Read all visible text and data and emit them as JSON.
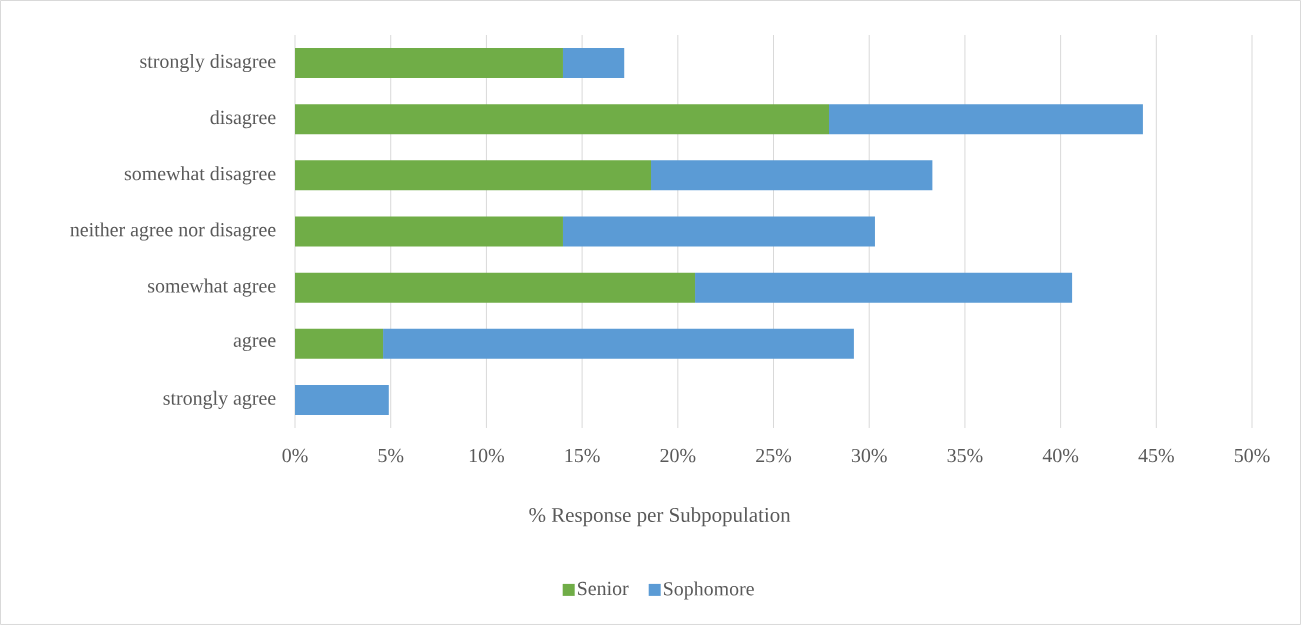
{
  "chart_data": {
    "type": "bar",
    "orientation": "horizontal",
    "stacked": true,
    "categories": [
      "strongly disagree",
      "disagree",
      "somewhat disagree",
      "neither agree nor disagree",
      "somewhat agree",
      "agree",
      "strongly agree"
    ],
    "series": [
      {
        "name": "Senior",
        "color": "#70ad47",
        "values": [
          14.0,
          27.9,
          18.6,
          14.0,
          20.9,
          4.6,
          0
        ]
      },
      {
        "name": "Sophomore",
        "color": "#5b9bd5",
        "values": [
          3.2,
          16.4,
          14.7,
          16.3,
          19.7,
          24.6,
          4.9
        ]
      }
    ],
    "xlabel": "% Response per Subpopulation",
    "xlim": [
      0,
      50
    ],
    "xticks": [
      {
        "value": 0,
        "label": "0%"
      },
      {
        "value": 5,
        "label": "5%"
      },
      {
        "value": 10,
        "label": "10%"
      },
      {
        "value": 15,
        "label": "15%"
      },
      {
        "value": 20,
        "label": "20%"
      },
      {
        "value": 25,
        "label": "25%"
      },
      {
        "value": 30,
        "label": "30%"
      },
      {
        "value": 35,
        "label": "35%"
      },
      {
        "value": 40,
        "label": "40%"
      },
      {
        "value": 45,
        "label": "45%"
      },
      {
        "value": 50,
        "label": "50%"
      }
    ],
    "grid": "x",
    "legend": "bottom"
  }
}
